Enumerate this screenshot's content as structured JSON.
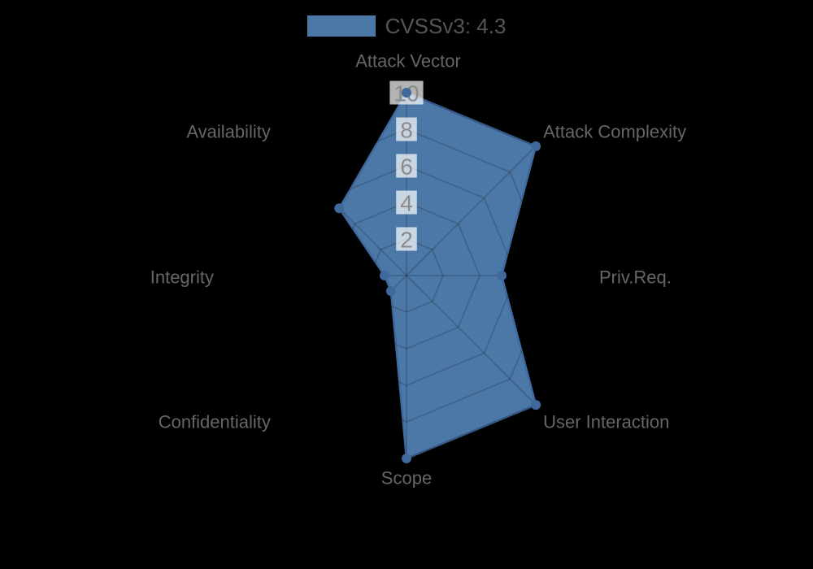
{
  "chart_data": {
    "type": "radar",
    "legend": "CVSSv3: 4.3",
    "categories": [
      "Attack Vector",
      "Attack Complexity",
      "Priv.Req.",
      "User Interaction",
      "Scope",
      "Confidentiality",
      "Integrity",
      "Availability"
    ],
    "series": [
      {
        "name": "CVSSv3: 4.3",
        "values": [
          10,
          10,
          5.2,
          10,
          10,
          1.2,
          1.2,
          5.2
        ]
      }
    ],
    "r_axis": {
      "min": 0,
      "max": 10,
      "tick_step": 2
    },
    "r_ticks": [
      "2",
      "4",
      "6",
      "8",
      "10"
    ],
    "r_tick_values": [
      2,
      4,
      6,
      8,
      10
    ],
    "grid": "polygon-web",
    "legend_position": "top",
    "colors": {
      "background": "#000000",
      "fill": "#4c78a7",
      "border": "#3f689c",
      "point": "#3f689c",
      "grid_overlay": "rgba(0,0,0,0.18)",
      "tick_backdrop": "rgba(255,255,255,0.70)",
      "tick_text": "#8a8a8a",
      "axis_label": "#666666",
      "legend_text": "#555555"
    }
  }
}
